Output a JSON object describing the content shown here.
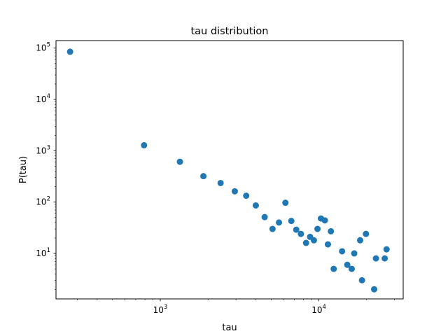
{
  "chart_data": {
    "type": "scatter",
    "title": "tau distribution",
    "xlabel": "tau",
    "ylabel": "P(tau)",
    "xscale": "log",
    "yscale": "log",
    "xlim": [
      220,
      34000
    ],
    "ylim": [
      1.3,
      140000
    ],
    "grid": false,
    "marker_color": "#1f77b4",
    "x_ticks": [
      {
        "base": "10",
        "exp": "3",
        "value": 1000
      },
      {
        "base": "10",
        "exp": "4",
        "value": 10000
      }
    ],
    "y_ticks": [
      {
        "base": "10",
        "exp": "1",
        "value": 10
      },
      {
        "base": "10",
        "exp": "2",
        "value": 100
      },
      {
        "base": "10",
        "exp": "3",
        "value": 1000
      },
      {
        "base": "10",
        "exp": "4",
        "value": 10000
      },
      {
        "base": "10",
        "exp": "5",
        "value": 100000
      }
    ],
    "points": [
      {
        "x": 270,
        "y": 85000
      },
      {
        "x": 790,
        "y": 1280
      },
      {
        "x": 1330,
        "y": 610
      },
      {
        "x": 1870,
        "y": 320
      },
      {
        "x": 2400,
        "y": 235
      },
      {
        "x": 2950,
        "y": 162
      },
      {
        "x": 3480,
        "y": 133
      },
      {
        "x": 4000,
        "y": 86
      },
      {
        "x": 4550,
        "y": 51
      },
      {
        "x": 5100,
        "y": 30
      },
      {
        "x": 5600,
        "y": 40
      },
      {
        "x": 6150,
        "y": 97
      },
      {
        "x": 6700,
        "y": 43
      },
      {
        "x": 7200,
        "y": 29
      },
      {
        "x": 7700,
        "y": 24
      },
      {
        "x": 8300,
        "y": 16
      },
      {
        "x": 8800,
        "y": 21
      },
      {
        "x": 9300,
        "y": 18
      },
      {
        "x": 9800,
        "y": 30
      },
      {
        "x": 10300,
        "y": 48
      },
      {
        "x": 10900,
        "y": 44
      },
      {
        "x": 11400,
        "y": 15
      },
      {
        "x": 11900,
        "y": 27
      },
      {
        "x": 12400,
        "y": 5
      },
      {
        "x": 14000,
        "y": 11
      },
      {
        "x": 15100,
        "y": 6
      },
      {
        "x": 16100,
        "y": 5
      },
      {
        "x": 16700,
        "y": 10
      },
      {
        "x": 18200,
        "y": 18
      },
      {
        "x": 18700,
        "y": 3
      },
      {
        "x": 19800,
        "y": 24
      },
      {
        "x": 22300,
        "y": 2
      },
      {
        "x": 22900,
        "y": 8
      },
      {
        "x": 26000,
        "y": 8
      },
      {
        "x": 26700,
        "y": 12
      }
    ]
  }
}
